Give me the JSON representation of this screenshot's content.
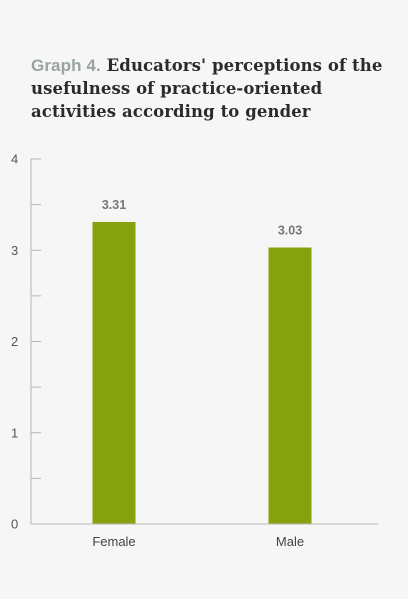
{
  "chart_data": {
    "type": "bar",
    "title_prefix": "Graph 4.",
    "title": "Educators' perceptions of the usefulness of practice-oriented activities according to gender",
    "categories": [
      "Female",
      "Male"
    ],
    "values": [
      3.31,
      3.03
    ],
    "value_labels": [
      "3.31",
      "3.03"
    ],
    "ylim": [
      0,
      4
    ],
    "yticks": [
      0,
      1,
      2,
      3,
      4
    ],
    "minor_ticks": true,
    "bar_color": "#86a30f",
    "axis_color": "#b5b5b5",
    "grid": false,
    "legend": "none",
    "xlabel": "",
    "ylabel": ""
  }
}
